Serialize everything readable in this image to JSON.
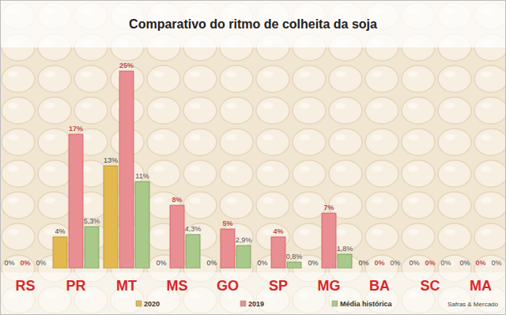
{
  "chart_data": {
    "type": "bar",
    "title": "Comparativo do ritmo de colheita da soja",
    "annotations": [
      "Safras & Mercado"
    ],
    "categories": [
      "RS",
      "PR",
      "MT",
      "MS",
      "GO",
      "SP",
      "MG",
      "BA",
      "SC",
      "MA"
    ],
    "series": [
      {
        "name": "2020",
        "color": "#e2b84f",
        "values": [
          0,
          4,
          13,
          0,
          0,
          0,
          0,
          0,
          0,
          0
        ],
        "value_labels": [
          "0%",
          "4%",
          "13%",
          "0%",
          "0%",
          "0%",
          "0%",
          "0%",
          "0%",
          "0%"
        ]
      },
      {
        "name": "2019",
        "color": "#e98e92",
        "values": [
          0,
          17,
          25,
          8,
          5,
          4,
          7,
          0,
          0,
          0
        ],
        "value_labels": [
          "0%",
          "17%",
          "25%",
          "8%",
          "5%",
          "4%",
          "7%",
          "0%",
          "0%",
          "0%"
        ]
      },
      {
        "name": "Média histórica",
        "color": "#a9c98b",
        "values": [
          0,
          5.3,
          11,
          4.3,
          2.9,
          0.8,
          1.8,
          0,
          0,
          0
        ],
        "value_labels": [
          "0%",
          "5,3%",
          "11%",
          "4,3%",
          "2,9%",
          "0,8%",
          "1,8%",
          "0%",
          "0%",
          "0%"
        ]
      }
    ],
    "ylim": [
      0,
      27
    ],
    "grid": false,
    "legend": "bottom",
    "data_labels": true,
    "tick_labels": "x"
  }
}
